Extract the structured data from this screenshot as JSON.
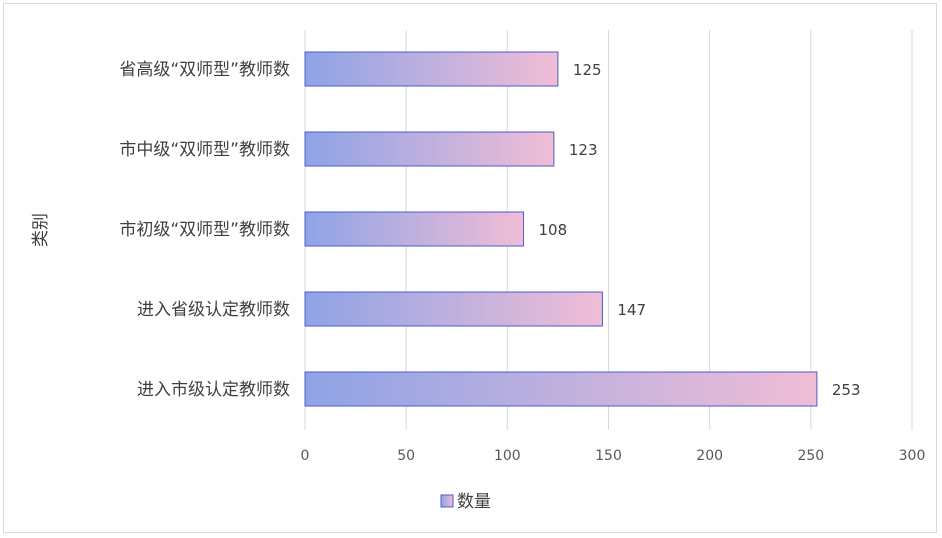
{
  "chart_data": {
    "type": "bar",
    "orientation": "horizontal",
    "categories": [
      "省高级“双师型”教师数",
      "市中级“双师型”教师数",
      "市初级“双师型”教师数",
      "进入省级认定教师数",
      "进入市级认定教师数"
    ],
    "series": [
      {
        "name": "数量",
        "values": [
          125,
          123,
          108,
          147,
          253
        ]
      }
    ],
    "xlim": [
      0,
      300
    ],
    "xticks": [
      0,
      50,
      100,
      150,
      200,
      250,
      300
    ],
    "ylabel": "类别",
    "xlabel": "",
    "grid": true,
    "legend_position": "bottom",
    "colors": {
      "bar_start": "#8fa3e6",
      "bar_end": "#f0bdd6",
      "bar_border": "#4a5ecb",
      "grid": "#d9d9d9"
    }
  }
}
